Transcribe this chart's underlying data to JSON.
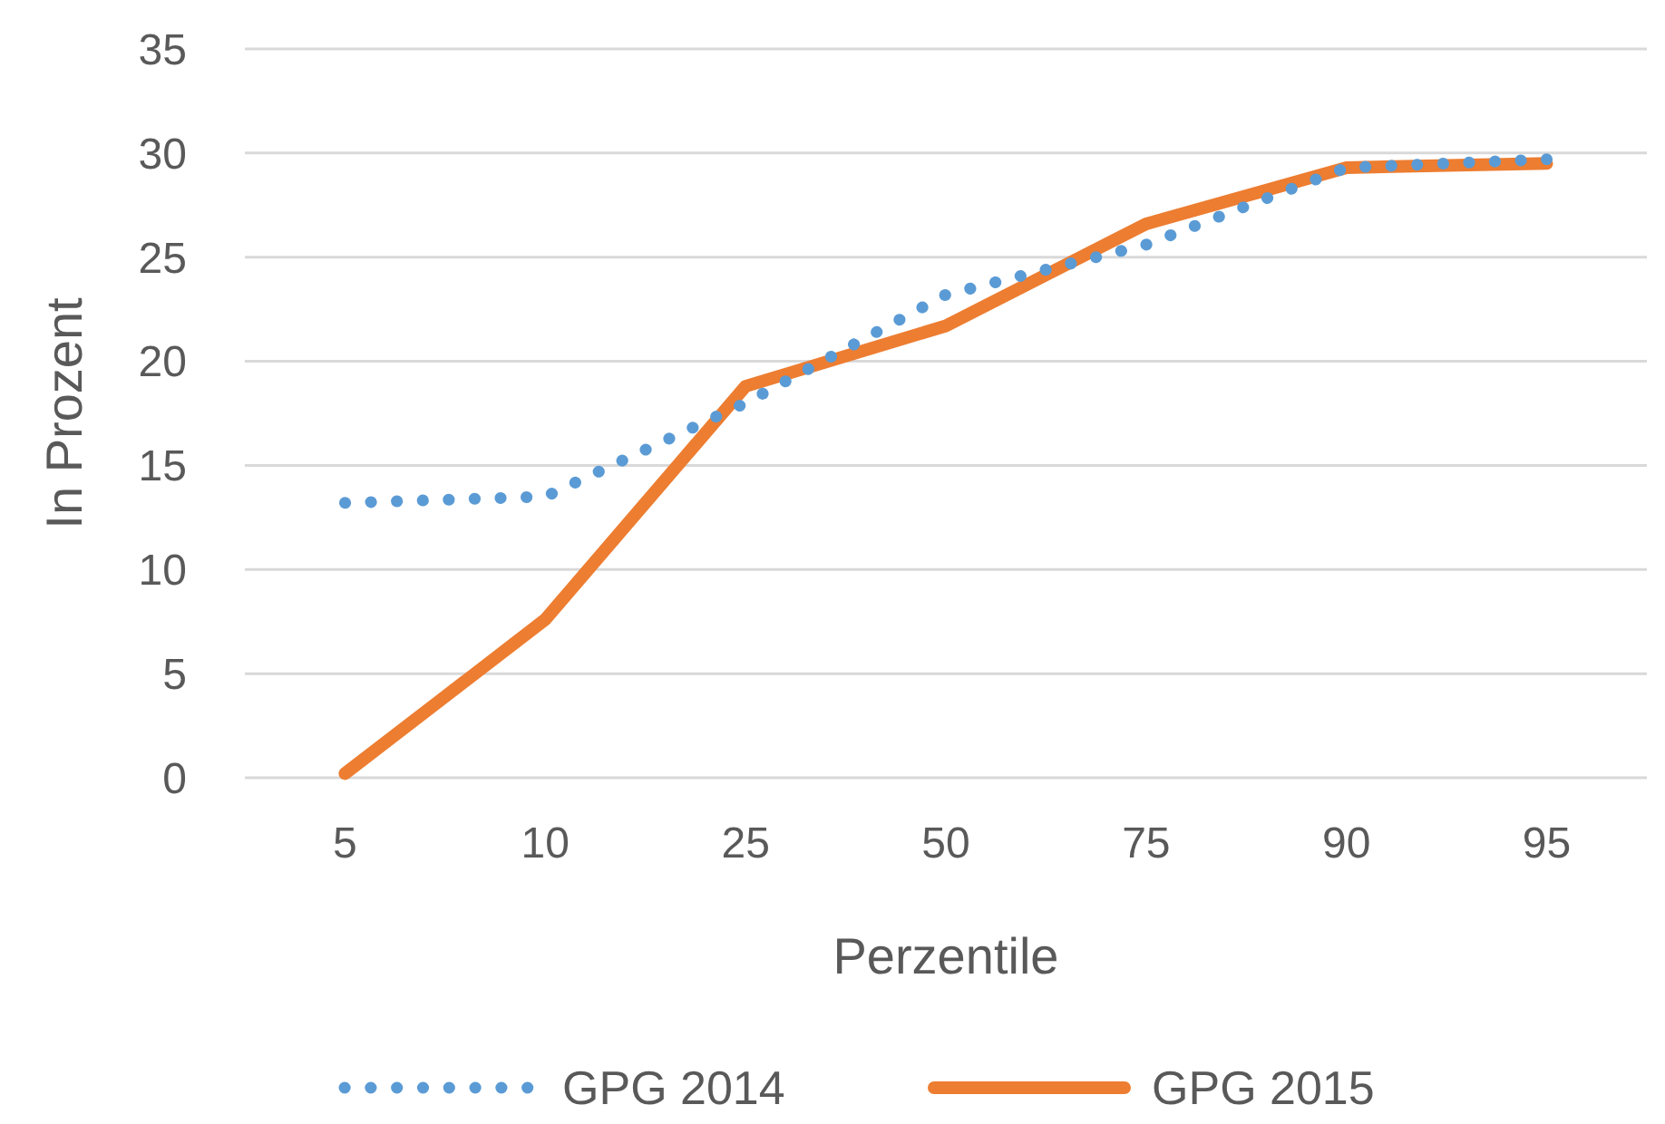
{
  "chart_data": {
    "type": "line",
    "xlabel": "Perzentile",
    "ylabel": "In Prozent",
    "categories": [
      "5",
      "10",
      "25",
      "50",
      "75",
      "90",
      "95"
    ],
    "series": [
      {
        "name": "GPG 2014",
        "color": "#5b9bd5",
        "line_style": "dotted",
        "values": [
          13.2,
          13.5,
          18.0,
          23.2,
          25.6,
          29.3,
          29.7
        ]
      },
      {
        "name": "GPG 2015",
        "color": "#ed7d31",
        "line_style": "solid",
        "values": [
          0.2,
          7.6,
          18.8,
          21.7,
          26.6,
          29.3,
          29.5
        ]
      }
    ],
    "ylim": [
      0,
      35
    ],
    "yticks": [
      0,
      5,
      10,
      15,
      20,
      25,
      30,
      35
    ],
    "grid": "y",
    "legend": "bottom"
  }
}
